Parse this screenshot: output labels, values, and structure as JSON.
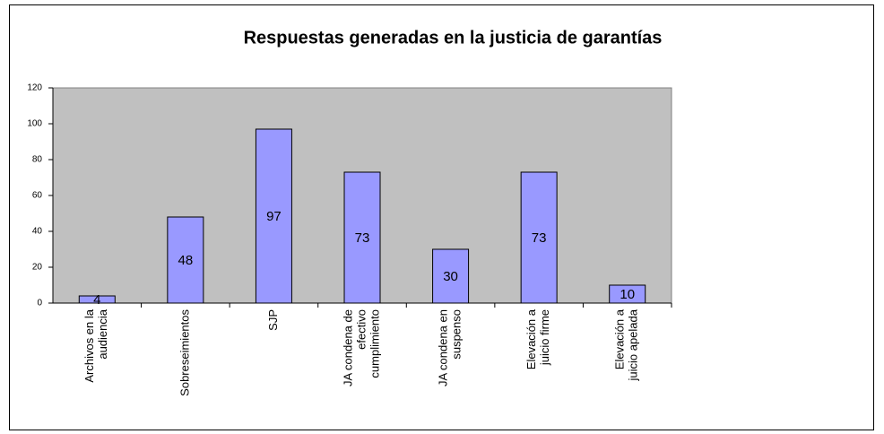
{
  "chart_data": {
    "type": "bar",
    "title": "Respuestas generadas en la justicia de garantías",
    "categories": [
      [
        "Archivos en la",
        "audiencia"
      ],
      [
        "Sobreseimientos"
      ],
      [
        "SJP"
      ],
      [
        "JA condena de",
        "efectivo",
        "cumplimiento"
      ],
      [
        "JA condena en",
        "suspenso"
      ],
      [
        "Elevación a",
        "juicio firme"
      ],
      [
        "Elevación a",
        "juicio apelada"
      ]
    ],
    "values": [
      4,
      48,
      97,
      73,
      30,
      73,
      10
    ],
    "color": "#9999ff",
    "plot_background": "#c0c0c0",
    "ylim": [
      0,
      120
    ],
    "yticks": [
      0,
      20,
      40,
      60,
      80,
      100,
      120
    ],
    "grid": false
  }
}
